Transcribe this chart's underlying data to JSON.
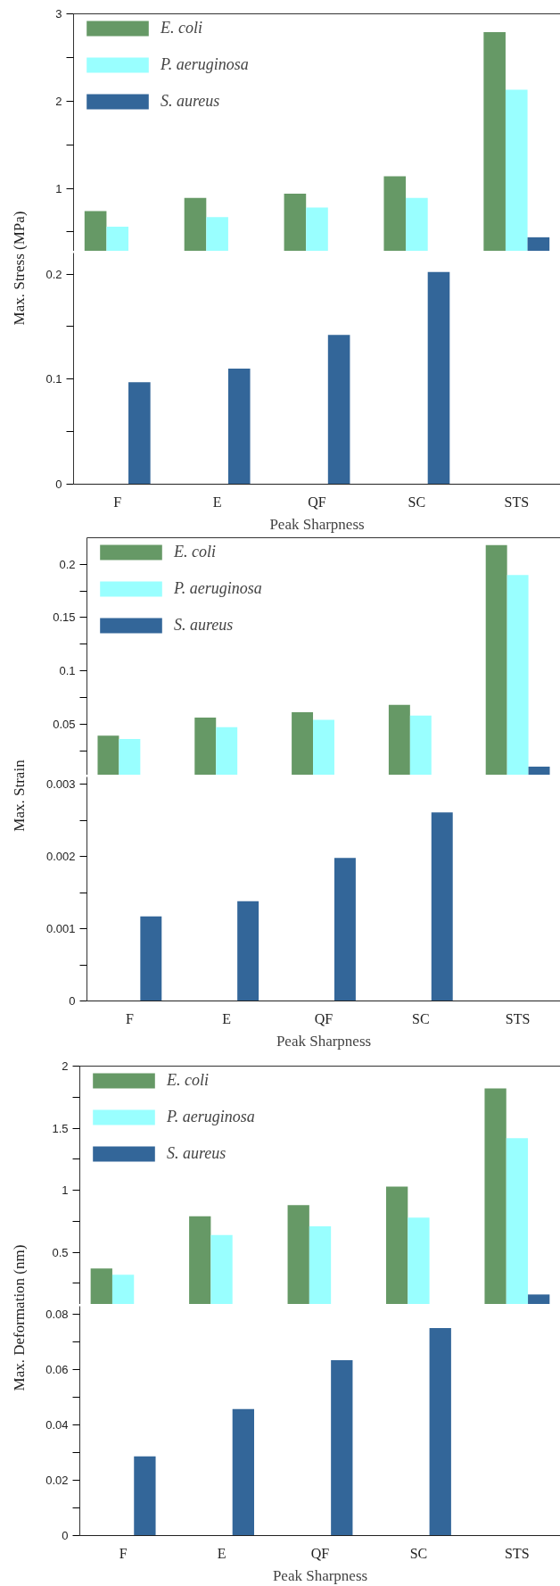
{
  "chart_data": [
    {
      "type": "bar",
      "categories": [
        null,
        null,
        null,
        null,
        null
      ],
      "legend": "top left",
      "tick_labels": "y",
      "ylim": [
        0.28,
        3
      ],
      "yticks": [
        {
          "value": 0.5,
          "label": null
        },
        1,
        {
          "value": 1.5,
          "label": null
        },
        2,
        {
          "value": 2.5,
          "label": null
        },
        3
      ],
      "series": [
        {
          "name": "E. coli",
          "color": "#669966",
          "values": [
            0.74,
            0.89,
            0.94,
            1.14,
            2.79
          ]
        },
        {
          "name": "P. aeruginosa",
          "color": "#99ffff",
          "values": [
            0.56,
            0.67,
            0.78,
            0.89,
            2.13
          ]
        },
        {
          "name": "S. aureus",
          "color": "#336699",
          "values": [
            null,
            null,
            null,
            null,
            0.44
          ]
        }
      ]
    },
    {
      "type": "bar",
      "categories": [
        "F",
        "E",
        "QF",
        "SC",
        "STS"
      ],
      "xlabel": "Peak Sharpness",
      "ylabel": "Max. Stress (MPa)",
      "ylim": [
        0,
        0.22
      ],
      "yticks": [
        0,
        {
          "value": 0.05,
          "label": null
        },
        0.1,
        {
          "value": 0.15,
          "label": null
        },
        0.2
      ],
      "series": [
        {
          "color": "#336699",
          "values": [
            0.097,
            0.11,
            0.142,
            0.202,
            null
          ]
        }
      ]
    },
    {
      "type": "bar",
      "categories": [
        null,
        null,
        null,
        null,
        null
      ],
      "legend": "top left",
      "tick_labels": "y",
      "ylim": [
        0.002,
        0.225
      ],
      "yticks": [
        {
          "value": 0.025,
          "label": null
        },
        0.05,
        {
          "value": 0.075,
          "label": null
        },
        0.1,
        {
          "value": 0.125,
          "label": null
        },
        0.15,
        {
          "value": 0.175,
          "label": null
        },
        0.2
      ],
      "series": [
        {
          "name": "E. coli",
          "color": "#669966",
          "values": [
            0.039,
            0.056,
            0.061,
            0.068,
            0.218
          ]
        },
        {
          "name": "P. aeruginosa",
          "color": "#99ffff",
          "values": [
            0.036,
            0.047,
            0.054,
            0.058,
            0.19
          ]
        },
        {
          "name": "S. aureus",
          "color": "#336699",
          "values": [
            null,
            null,
            null,
            null,
            0.01
          ]
        }
      ]
    },
    {
      "type": "bar",
      "categories": [
        "F",
        "E",
        "QF",
        "SC",
        "STS"
      ],
      "xlabel": "Peak Sharpness",
      "ylabel": "Max. Strain",
      "ylim": [
        0,
        0.0031
      ],
      "yticks": [
        0,
        {
          "value": 0.0005,
          "label": null
        },
        0.001,
        {
          "value": 0.0015,
          "label": null
        },
        0.002,
        {
          "value": 0.0025,
          "label": null
        },
        0.003
      ],
      "series": [
        {
          "color": "#336699",
          "values": [
            0.00117,
            0.00138,
            0.00198,
            0.00261,
            null
          ]
        }
      ]
    },
    {
      "type": "bar",
      "categories": [
        null,
        null,
        null,
        null,
        null
      ],
      "legend": "top left",
      "tick_labels": "y",
      "ylim": [
        0.08,
        2
      ],
      "yticks": [
        {
          "value": 0.25,
          "label": null
        },
        0.5,
        {
          "value": 0.75,
          "label": null
        },
        1,
        {
          "value": 1.25,
          "label": null
        },
        1.5,
        {
          "value": 1.75,
          "label": null
        },
        2
      ],
      "series": [
        {
          "name": "E. coli",
          "color": "#669966",
          "values": [
            0.37,
            0.79,
            0.88,
            1.03,
            1.82
          ]
        },
        {
          "name": "P. aeruginosa",
          "color": "#99ffff",
          "values": [
            0.32,
            0.64,
            0.71,
            0.78,
            1.42
          ]
        },
        {
          "name": "S. aureus",
          "color": "#336699",
          "values": [
            null,
            null,
            null,
            null,
            0.16
          ]
        }
      ]
    },
    {
      "type": "bar",
      "categories": [
        "F",
        "E",
        "QF",
        "SC",
        "STS"
      ],
      "xlabel": "Peak Sharpness",
      "ylabel": "Max. Deformation (nm)",
      "ylim": [
        0,
        0.083
      ],
      "yticks": [
        0,
        {
          "value": 0.01,
          "label": null
        },
        0.02,
        {
          "value": 0.03,
          "label": null
        },
        0.04,
        {
          "value": 0.05,
          "label": null
        },
        0.06,
        {
          "value": 0.07,
          "label": null
        },
        0.08
      ],
      "series": [
        {
          "color": "#336699",
          "values": [
            0.0287,
            0.0458,
            0.0635,
            0.0751,
            null
          ]
        }
      ]
    }
  ]
}
